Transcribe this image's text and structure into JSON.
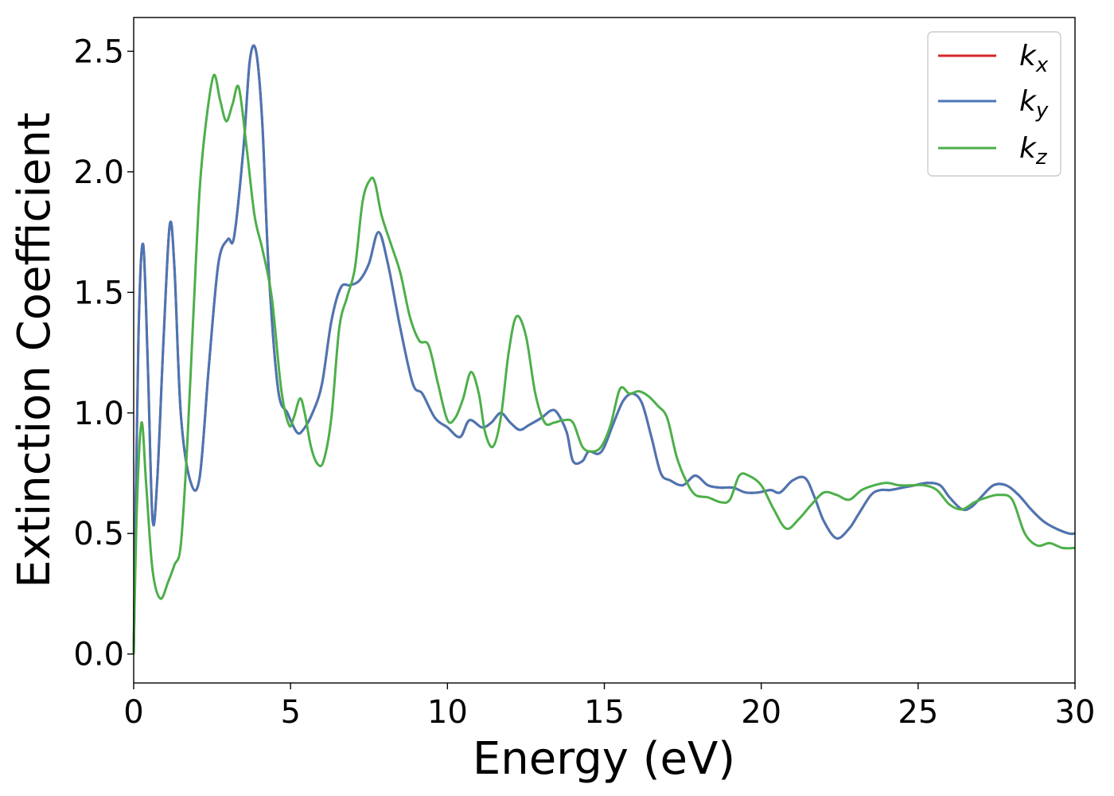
{
  "chart_data": {
    "type": "line",
    "title": "",
    "xlabel": "Energy (eV)",
    "ylabel": "Extinction Coefficient",
    "xlim": [
      0,
      30
    ],
    "ylim": [
      -0.12,
      2.64
    ],
    "xticks": [
      0,
      5,
      10,
      15,
      20,
      25,
      30
    ],
    "yticks": [
      0.0,
      0.5,
      1.0,
      1.5,
      2.0,
      2.5
    ],
    "xtick_labels": [
      "0",
      "5",
      "10",
      "15",
      "20",
      "25",
      "30"
    ],
    "ytick_labels": [
      "0.0",
      "0.5",
      "1.0",
      "1.5",
      "2.0",
      "2.5"
    ],
    "grid": false,
    "legend_position": "top-right",
    "series": [
      {
        "name": "k_x",
        "label_base": "k",
        "label_sub": "x",
        "color": "#d62728",
        "x": [
          0,
          0.15,
          0.3,
          0.45,
          0.6,
          0.75,
          0.95,
          1.15,
          1.3,
          1.5,
          1.8,
          2.1,
          2.4,
          2.7,
          3.0,
          3.2,
          3.5,
          3.7,
          3.9,
          4.1,
          4.3,
          4.6,
          4.9,
          5.2,
          5.4,
          5.7,
          6.0,
          6.3,
          6.6,
          6.9,
          7.2,
          7.5,
          7.8,
          8.1,
          8.5,
          8.9,
          9.2,
          9.6,
          10.0,
          10.4,
          10.7,
          11.1,
          11.4,
          11.7,
          12.0,
          12.3,
          12.6,
          13.0,
          13.3,
          13.5,
          13.8,
          14.0,
          14.3,
          14.5,
          14.8,
          15.0,
          15.3,
          15.6,
          15.9,
          16.2,
          16.5,
          16.8,
          17.1,
          17.5,
          17.9,
          18.3,
          18.7,
          19.1,
          19.5,
          19.9,
          20.3,
          20.6,
          21.0,
          21.4,
          21.7,
          22.0,
          22.4,
          22.8,
          23.1,
          23.5,
          23.8,
          24.1,
          24.5,
          24.9,
          25.3,
          25.7,
          26.0,
          26.4,
          26.7,
          27.0,
          27.4,
          27.8,
          28.2,
          28.6,
          29.0,
          29.4,
          29.8,
          30.0
        ],
        "y": [
          0.0,
          1.3,
          1.7,
          1.2,
          0.56,
          0.72,
          1.3,
          1.78,
          1.6,
          1.0,
          0.72,
          0.73,
          1.2,
          1.62,
          1.72,
          1.73,
          2.1,
          2.46,
          2.5,
          2.2,
          1.6,
          1.1,
          1.0,
          0.92,
          0.93,
          1.0,
          1.12,
          1.38,
          1.52,
          1.53,
          1.55,
          1.62,
          1.75,
          1.62,
          1.35,
          1.12,
          1.08,
          0.98,
          0.94,
          0.9,
          0.97,
          0.94,
          0.96,
          1.0,
          0.96,
          0.93,
          0.95,
          0.98,
          1.01,
          1.0,
          0.92,
          0.8,
          0.8,
          0.84,
          0.83,
          0.86,
          0.96,
          1.05,
          1.08,
          1.04,
          0.9,
          0.75,
          0.72,
          0.7,
          0.74,
          0.7,
          0.69,
          0.69,
          0.67,
          0.67,
          0.68,
          0.67,
          0.72,
          0.73,
          0.65,
          0.55,
          0.48,
          0.52,
          0.58,
          0.66,
          0.68,
          0.68,
          0.69,
          0.7,
          0.71,
          0.7,
          0.65,
          0.6,
          0.61,
          0.65,
          0.7,
          0.7,
          0.66,
          0.6,
          0.55,
          0.52,
          0.5,
          0.5
        ]
      },
      {
        "name": "k_y",
        "label_base": "k",
        "label_sub": "y",
        "color": "#4a76b4",
        "x": [
          0,
          0.15,
          0.3,
          0.45,
          0.6,
          0.75,
          0.95,
          1.15,
          1.3,
          1.5,
          1.8,
          2.1,
          2.4,
          2.7,
          3.0,
          3.2,
          3.5,
          3.7,
          3.9,
          4.1,
          4.3,
          4.6,
          4.9,
          5.2,
          5.4,
          5.7,
          6.0,
          6.3,
          6.6,
          6.9,
          7.2,
          7.5,
          7.8,
          8.1,
          8.5,
          8.9,
          9.2,
          9.6,
          10.0,
          10.4,
          10.7,
          11.1,
          11.4,
          11.7,
          12.0,
          12.3,
          12.6,
          13.0,
          13.3,
          13.5,
          13.8,
          14.0,
          14.3,
          14.5,
          14.8,
          15.0,
          15.3,
          15.6,
          15.9,
          16.2,
          16.5,
          16.8,
          17.1,
          17.5,
          17.9,
          18.3,
          18.7,
          19.1,
          19.5,
          19.9,
          20.3,
          20.6,
          21.0,
          21.4,
          21.7,
          22.0,
          22.4,
          22.8,
          23.1,
          23.5,
          23.8,
          24.1,
          24.5,
          24.9,
          25.3,
          25.7,
          26.0,
          26.4,
          26.7,
          27.0,
          27.4,
          27.8,
          28.2,
          28.6,
          29.0,
          29.4,
          29.8,
          30.0
        ],
        "y": [
          0.0,
          1.3,
          1.7,
          1.2,
          0.56,
          0.72,
          1.3,
          1.78,
          1.6,
          1.0,
          0.72,
          0.73,
          1.2,
          1.62,
          1.72,
          1.73,
          2.1,
          2.46,
          2.5,
          2.2,
          1.6,
          1.1,
          1.0,
          0.92,
          0.93,
          1.0,
          1.12,
          1.38,
          1.52,
          1.53,
          1.55,
          1.62,
          1.75,
          1.62,
          1.35,
          1.12,
          1.08,
          0.98,
          0.94,
          0.9,
          0.97,
          0.94,
          0.96,
          1.0,
          0.96,
          0.93,
          0.95,
          0.98,
          1.01,
          1.0,
          0.92,
          0.8,
          0.8,
          0.84,
          0.83,
          0.86,
          0.96,
          1.05,
          1.08,
          1.04,
          0.9,
          0.75,
          0.72,
          0.7,
          0.74,
          0.7,
          0.69,
          0.69,
          0.67,
          0.67,
          0.68,
          0.67,
          0.72,
          0.73,
          0.65,
          0.55,
          0.48,
          0.52,
          0.58,
          0.66,
          0.68,
          0.68,
          0.69,
          0.7,
          0.71,
          0.7,
          0.65,
          0.6,
          0.61,
          0.65,
          0.7,
          0.7,
          0.66,
          0.6,
          0.55,
          0.52,
          0.5,
          0.5
        ]
      },
      {
        "name": "k_z",
        "label_base": "k",
        "label_sub": "z",
        "color": "#4daf4a",
        "x": [
          0,
          0.1,
          0.25,
          0.4,
          0.6,
          0.85,
          1.1,
          1.3,
          1.5,
          1.7,
          1.9,
          2.1,
          2.3,
          2.55,
          2.75,
          2.95,
          3.15,
          3.35,
          3.6,
          3.85,
          4.1,
          4.4,
          4.7,
          4.95,
          5.1,
          5.3,
          5.45,
          5.65,
          5.85,
          6.05,
          6.3,
          6.55,
          6.8,
          7.05,
          7.3,
          7.55,
          7.7,
          7.9,
          8.2,
          8.5,
          8.8,
          9.1,
          9.4,
          9.7,
          10.0,
          10.25,
          10.5,
          10.75,
          11.0,
          11.2,
          11.45,
          11.7,
          11.95,
          12.2,
          12.5,
          12.8,
          13.1,
          13.4,
          13.7,
          14.0,
          14.3,
          14.6,
          14.9,
          15.2,
          15.5,
          15.8,
          16.1,
          16.4,
          16.7,
          17.0,
          17.3,
          17.6,
          17.9,
          18.3,
          18.7,
          19.0,
          19.3,
          19.6,
          20.0,
          20.4,
          20.8,
          21.2,
          21.6,
          22.0,
          22.4,
          22.8,
          23.2,
          23.6,
          24.0,
          24.4,
          24.8,
          25.2,
          25.6,
          26.0,
          26.4,
          26.8,
          27.2,
          27.6,
          28.0,
          28.4,
          28.8,
          29.2,
          29.6,
          30.0
        ],
        "y": [
          0.0,
          0.6,
          0.96,
          0.7,
          0.35,
          0.23,
          0.3,
          0.37,
          0.45,
          0.85,
          1.4,
          1.92,
          2.2,
          2.4,
          2.3,
          2.21,
          2.28,
          2.35,
          2.1,
          1.82,
          1.68,
          1.48,
          1.1,
          0.95,
          0.98,
          1.06,
          1.0,
          0.86,
          0.79,
          0.8,
          0.98,
          1.35,
          1.48,
          1.6,
          1.88,
          1.97,
          1.95,
          1.82,
          1.7,
          1.58,
          1.4,
          1.3,
          1.28,
          1.12,
          0.97,
          0.98,
          1.06,
          1.17,
          1.08,
          0.92,
          0.86,
          0.98,
          1.25,
          1.4,
          1.32,
          1.08,
          0.96,
          0.96,
          0.97,
          0.96,
          0.86,
          0.84,
          0.86,
          0.95,
          1.1,
          1.08,
          1.09,
          1.07,
          1.03,
          0.98,
          0.82,
          0.72,
          0.66,
          0.65,
          0.63,
          0.64,
          0.74,
          0.74,
          0.7,
          0.6,
          0.52,
          0.56,
          0.62,
          0.67,
          0.66,
          0.64,
          0.68,
          0.7,
          0.71,
          0.7,
          0.7,
          0.7,
          0.68,
          0.62,
          0.6,
          0.63,
          0.65,
          0.66,
          0.64,
          0.5,
          0.45,
          0.46,
          0.44,
          0.44
        ]
      }
    ]
  }
}
